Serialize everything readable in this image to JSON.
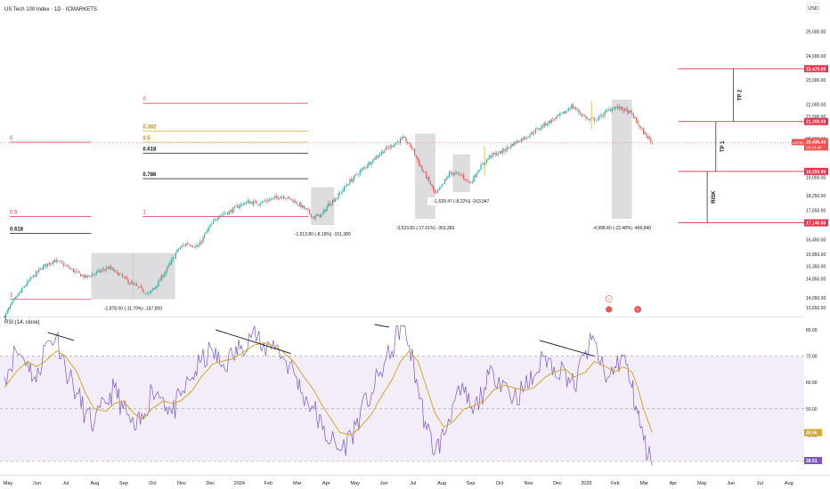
{
  "chart_data": {
    "type": "candlestick",
    "title": "US Tech 100 Index · 1D · ICMARKETS",
    "currency": "USD",
    "price_axis": {
      "ticks": [
        13650,
        14050,
        14850,
        15350,
        15850,
        16450,
        17650,
        18250,
        19000,
        20600,
        21500,
        22000,
        23000,
        24000,
        25000
      ],
      "tick_labels": [
        "13,650.00",
        "14,050.00",
        "14,850.00",
        "15,350.00",
        "15,850.00",
        "16,450.00",
        "17,650.00",
        "18,250.00",
        "19,000.00",
        "20,600.00",
        "21,500.00",
        "22,000.00",
        "23,000.00",
        "24,000.00",
        "25,000.00"
      ],
      "ylim": [
        13400,
        26000
      ]
    },
    "time_axis": {
      "labels": [
        "May",
        "Jun",
        "Jul",
        "Aug",
        "Sep",
        "Oct",
        "Nov",
        "Dec",
        "2024",
        "Feb",
        "Mar",
        "Apr",
        "May",
        "Jun",
        "Jul",
        "Aug",
        "Sep",
        "Oct",
        "Nov",
        "Dec",
        "2025",
        "Feb",
        "Mar",
        "Apr",
        "May",
        "Jun",
        "Jul",
        "Aug"
      ],
      "month_index": [
        0,
        1,
        2,
        3,
        4,
        5,
        6,
        7,
        8,
        9,
        10,
        11,
        12,
        13,
        14,
        15,
        16,
        17,
        18,
        19,
        20,
        21,
        22,
        23,
        24,
        25,
        26,
        27
      ],
      "xlim": [
        0,
        27.5
      ],
      "last_bar_month": 22.4
    },
    "price_path": {
      "months": [
        0,
        0.3,
        0.7,
        1,
        1.3,
        1.7,
        2.0,
        2.4,
        2.8,
        3.2,
        3.6,
        4.0,
        4.3,
        4.6,
        5.0,
        5.3,
        5.7,
        6.0,
        6.3,
        6.7,
        7.0,
        7.4,
        7.8,
        8.1,
        8.4,
        8.8,
        9.2,
        9.6,
        10.0,
        10.4,
        10.7,
        11.0,
        11.2,
        11.5,
        11.9,
        12.3,
        12.7,
        13.1,
        13.5,
        13.8,
        14.1,
        14.4,
        14.7,
        14.9,
        15.1,
        15.4,
        15.8,
        16.1,
        16.4,
        16.8,
        17.2,
        17.6,
        18.0,
        18.4,
        18.7,
        19.0,
        19.4,
        19.6,
        19.9,
        20.2,
        20.5,
        20.8,
        21.1,
        21.4,
        21.7,
        22.0,
        22.2,
        22.4
      ],
      "prices": [
        13300,
        13900,
        14550,
        14950,
        15300,
        15600,
        15450,
        15150,
        14900,
        15100,
        15300,
        15000,
        14700,
        14500,
        14200,
        14650,
        15400,
        16050,
        16300,
        16150,
        16800,
        17450,
        17600,
        17850,
        18000,
        17950,
        18100,
        18250,
        18050,
        17700,
        17350,
        17500,
        17900,
        18200,
        18800,
        19250,
        19700,
        20100,
        20400,
        20600,
        20200,
        19400,
        18800,
        18300,
        18600,
        19200,
        19100,
        18750,
        19350,
        19900,
        20050,
        20400,
        20650,
        20950,
        21200,
        21400,
        21700,
        21950,
        21650,
        21350,
        21400,
        21700,
        21900,
        21800,
        21600,
        21000,
        20700,
        20420
      ]
    },
    "drawdowns": [
      {
        "label": "-1,878.00 (-11.79%) -187,800",
        "start_month": 3.0,
        "end_month": 5.9,
        "high": 15900,
        "low": 14000
      },
      {
        "label": "-1,513.80 (-8.19%) -151,380",
        "start_month": 10.6,
        "end_month": 11.4,
        "high": 18600,
        "low": 17050
      },
      {
        "label": "-3,533.83 (-17.01%) -353,383",
        "start_month": 14.2,
        "end_month": 14.9,
        "high": 20800,
        "low": 17300
      },
      {
        "label": "-1,639.47 (-8.22%) -163,947",
        "start_month": 15.5,
        "end_month": 16.1,
        "high": 19950,
        "low": 18400
      },
      {
        "label": "-4,998.40 (-22.48%) -499,840",
        "start_month": 21.0,
        "end_month": 21.7,
        "high": 22200,
        "low": 17300
      }
    ],
    "fib_sets": [
      {
        "levels": [
          {
            "label": "0",
            "price": 20450
          },
          {
            "label": "0.5",
            "price": 17400
          },
          {
            "label": "0.618",
            "price": 16700
          },
          {
            "label": "1",
            "price": 14000
          }
        ],
        "start_month": 0,
        "end_month": 3.0
      },
      {
        "levels": [
          {
            "label": "0",
            "price": 22050
          },
          {
            "label": "0.382",
            "price": 20900
          },
          {
            "label": "0.5",
            "price": 20450
          },
          {
            "label": "0.618",
            "price": 20000
          },
          {
            "label": "0.786",
            "price": 18950
          },
          {
            "label": "1",
            "price": 17400
          }
        ],
        "start_month": 4.6,
        "end_month": 10.5
      }
    ],
    "trade_levels": [
      {
        "label": "23,470.00",
        "price": 23470,
        "color": "#e8314a"
      },
      {
        "label": "21,300.00",
        "price": 21300,
        "color": "#e8314a"
      },
      {
        "label": "19,250.00",
        "price": 19250,
        "color": "#e8314a"
      },
      {
        "label": "17,140.00",
        "price": 17140,
        "color": "#e8314a"
      }
    ],
    "trade_zones": [
      {
        "label": "TP 2",
        "from": 21300,
        "to": 23470
      },
      {
        "label": "TP 1",
        "from": 19250,
        "to": 21300
      },
      {
        "label": "RISK",
        "from": 17140,
        "to": 19250
      }
    ],
    "last_price": {
      "symbol": "USTEC",
      "label": "20,436.40",
      "countdown": "06:34:45",
      "price": 20436
    },
    "rsi": {
      "title": "RSI (14, close)",
      "ylim": [
        30,
        82
      ],
      "ticks": [
        30,
        40,
        50,
        60,
        70,
        80
      ],
      "tick_labels": [
        "30.00",
        "40.00",
        "50.00",
        "60.00",
        "70.00",
        "80.00"
      ],
      "overbought": 70,
      "oversold": 30,
      "current_ma": "40.96",
      "current_rsi": "28.51",
      "months": [
        0,
        0.4,
        0.8,
        1.1,
        1.4,
        1.8,
        2.1,
        2.5,
        2.8,
        3.1,
        3.5,
        3.8,
        4.1,
        4.5,
        4.8,
        5.1,
        5.5,
        5.8,
        6.1,
        6.5,
        6.8,
        7.2,
        7.5,
        7.9,
        8.2,
        8.6,
        8.9,
        9.3,
        9.6,
        10.0,
        10.3,
        10.7,
        11.0,
        11.3,
        11.6,
        12.0,
        12.3,
        12.7,
        13.0,
        13.4,
        13.7,
        14.0,
        14.3,
        14.6,
        14.9,
        15.2,
        15.5,
        15.9,
        16.2,
        16.6,
        16.9,
        17.3,
        17.6,
        18.0,
        18.3,
        18.7,
        19.0,
        19.4,
        19.7,
        20.1,
        20.4,
        20.8,
        21.1,
        21.4,
        21.7,
        21.9,
        22.1,
        22.4
      ],
      "values": [
        62,
        72,
        68,
        60,
        74,
        78,
        66,
        56,
        48,
        44,
        52,
        58,
        50,
        42,
        46,
        58,
        54,
        48,
        55,
        62,
        68,
        72,
        66,
        70,
        74,
        80,
        72,
        76,
        70,
        64,
        56,
        50,
        42,
        38,
        34,
        40,
        48,
        56,
        64,
        72,
        82,
        74,
        58,
        42,
        34,
        40,
        52,
        56,
        48,
        58,
        64,
        60,
        54,
        58,
        62,
        70,
        66,
        64,
        58,
        72,
        76,
        60,
        66,
        70,
        58,
        48,
        38,
        28.5
      ],
      "ma_values": [
        58,
        64,
        68,
        66,
        68,
        72,
        70,
        64,
        56,
        50,
        49,
        52,
        53,
        48,
        46,
        50,
        53,
        52,
        53,
        57,
        62,
        67,
        68,
        69,
        71,
        74,
        75,
        74,
        72,
        68,
        63,
        57,
        51,
        46,
        41,
        40,
        43,
        48,
        54,
        61,
        68,
        72,
        68,
        58,
        48,
        43,
        45,
        50,
        51,
        53,
        57,
        59,
        58,
        57,
        58,
        62,
        64,
        65,
        62,
        64,
        68,
        66,
        64,
        66,
        64,
        58,
        50,
        41
      ]
    },
    "divergences": [
      {
        "from_month": 1.5,
        "to_month": 2.4,
        "from_rsi": 79,
        "to_rsi": 76
      },
      {
        "from_month": 7.3,
        "to_month": 9.9,
        "from_rsi": 80,
        "to_rsi": 71
      },
      {
        "from_month": 12.8,
        "to_month": 13.3,
        "from_rsi": 82,
        "to_rsi": 81
      },
      {
        "from_month": 18.5,
        "to_month": 20.4,
        "from_rsi": 76,
        "to_rsi": 70
      }
    ],
    "events": [
      {
        "glyph": "⚡",
        "month": 20.9
      },
      {
        "glyph": "✎",
        "month": 21.9
      }
    ],
    "colors": {
      "bull": "#26a69a",
      "bear": "#ef5350",
      "level_red": "#e8314a",
      "fib_gold": "#d8b53a",
      "rsi_line": "#7e57c2",
      "rsi_ma": "#d4a82a",
      "rsi_band": "#ede7f6",
      "zone_fill": "#2a2e39"
    }
  }
}
